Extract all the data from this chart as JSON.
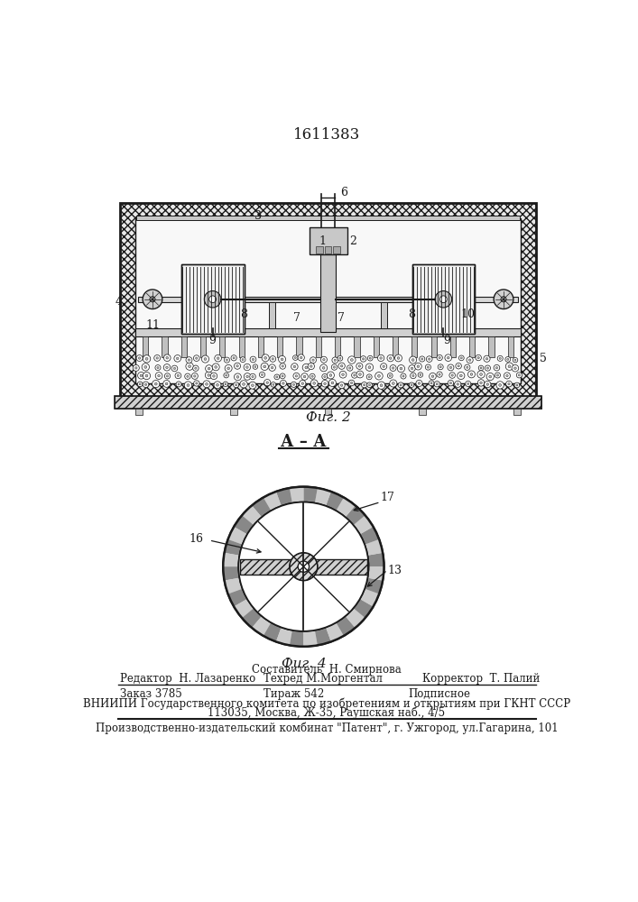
{
  "title": "1611383",
  "fig2_label": "Фиг. 2",
  "fig4_label": "Фиг. 4",
  "fig4_section": "А – А",
  "footer_line1_mid1": "Составитель  Н. Смирнова",
  "footer_line1_left": "Редактор  Н. Лазаренко",
  "footer_line1_mid2": "Техред М.Моргентал",
  "footer_line1_right": "Корректор  Т. Палий",
  "footer_line2_left": "Заказ 3785",
  "footer_line2_mid": "Тираж 542",
  "footer_line2_right": "Подписное",
  "footer_line3": "ВНИИПИ Государственного комитета по изобретениям и открытиям при ГКНТ СССР",
  "footer_line4": "113035, Москва, Ж-35, Раушская наб., 4/5",
  "footer_line5": "Производственно-издательский комбинат \"Патент\", г. Ужгород, ул.Гагарина, 101",
  "bg_color": "#ffffff",
  "dc": "#1a1a1a"
}
